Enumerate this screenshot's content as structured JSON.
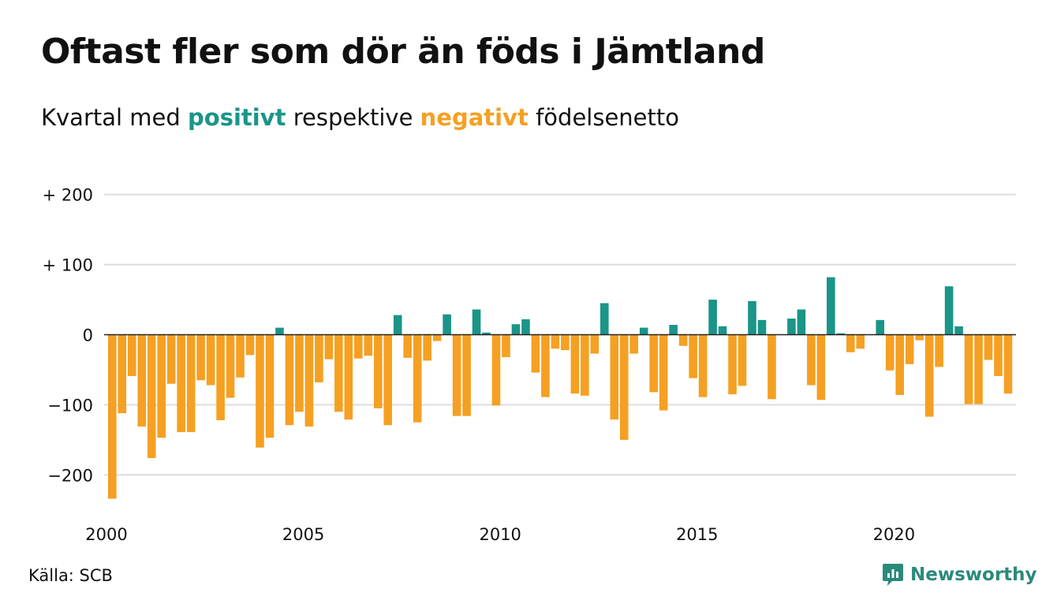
{
  "title": "Oftast fler som dör än föds i Jämtland",
  "subtitle": {
    "prefix": "Kvartal med",
    "positive": "positivt",
    "middle": "respektive",
    "negative": "negativt",
    "suffix": "födelsenetto"
  },
  "source": "Källa: SCB",
  "brand": "Newsworthy",
  "colors": {
    "positive": "#1a9588",
    "negative": "#f5a022",
    "grid": "#dddddd",
    "axis": "#222222",
    "text": "#111111",
    "brand": "#2a8a7a"
  },
  "chart_data": {
    "type": "bar",
    "x_unit": "kvartal",
    "x_start": "2000 Q1",
    "ylim": [
      -240,
      220
    ],
    "yticks": [
      200,
      100,
      0,
      -100,
      -200
    ],
    "ytick_labels": [
      "+ 200",
      "+ 100",
      "0",
      "−100",
      "−200"
    ],
    "xticks": [
      2000,
      2005,
      2010,
      2015,
      2020
    ],
    "xtick_labels": [
      "2000",
      "2005",
      "2010",
      "2015",
      "2020"
    ],
    "grid": true,
    "values": [
      -234,
      -112,
      -59,
      -131,
      -176,
      -147,
      -70,
      -139,
      -139,
      -65,
      -72,
      -122,
      -90,
      -61,
      -29,
      -161,
      -147,
      10,
      -129,
      -110,
      -131,
      -68,
      -35,
      -110,
      -121,
      -34,
      -30,
      -105,
      -129,
      28,
      -33,
      -125,
      -37,
      -9,
      29,
      -116,
      -116,
      36,
      3,
      -101,
      -32,
      15,
      22,
      -54,
      -89,
      -20,
      -22,
      -84,
      -87,
      -27,
      45,
      -121,
      -150,
      -27,
      10,
      -82,
      -108,
      14,
      -16,
      -62,
      -89,
      50,
      12,
      -85,
      -73,
      48,
      21,
      -92,
      0,
      23,
      36,
      -72,
      -93,
      82,
      2,
      -25,
      -20,
      0,
      21,
      -51,
      -86,
      -42,
      -8,
      -117,
      -46,
      69,
      12,
      -99,
      -99,
      -36,
      -59,
      -84
    ]
  }
}
